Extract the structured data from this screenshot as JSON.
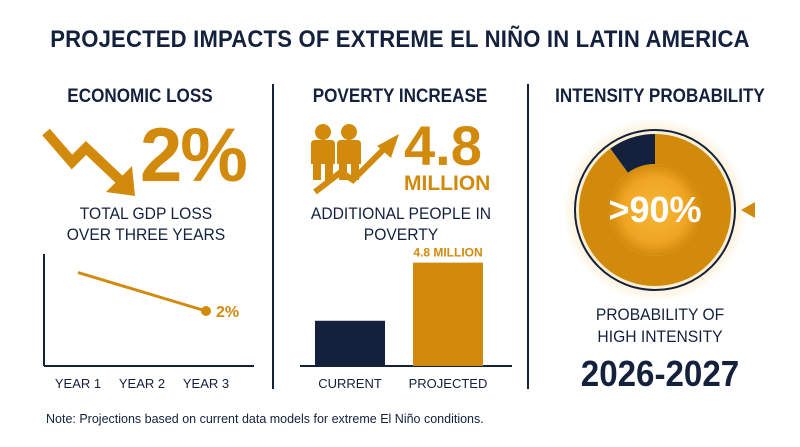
{
  "title": "PROJECTED IMPACTS OF EXTREME EL NIÑO IN LATIN AMERICA",
  "panels": {
    "economic": {
      "heading": "ECONOMIC LOSS",
      "stat": "2%",
      "caption_line1": "TOTAL GDP LOSS",
      "caption_line2": "OVER THREE YEARS",
      "icon": "downtrend-arrow-icon"
    },
    "poverty": {
      "heading": "POVERTY INCREASE",
      "stat_number": "4.8",
      "stat_unit": "MILLION",
      "caption_line1": "ADDITIONAL PEOPLE IN",
      "caption_line2": "POVERTY",
      "icon": "people-uptrend-icon"
    },
    "intensity": {
      "heading": "INTENSITY PROBABILITY",
      "stat": ">90%",
      "caption_line1": "PROBABILITY OF",
      "caption_line2": "HIGH INTENSITY",
      "period": "2026-2027"
    }
  },
  "chart_data": [
    {
      "type": "line",
      "categories": [
        "YEAR 1",
        "YEAR 2",
        "YEAR 3"
      ],
      "values": [
        3.4,
        2.7,
        2.0
      ],
      "end_label": "2%",
      "ylim": [
        0,
        4
      ],
      "grid": false
    },
    {
      "type": "bar",
      "categories": [
        "CURRENT",
        "PROJECTED"
      ],
      "values": [
        2.1,
        4.8
      ],
      "data_labels": [
        "",
        "4.8 MILLION"
      ],
      "ylim": [
        0,
        5.2
      ],
      "colors": [
        "#14213d",
        "#d28a0c"
      ],
      "grid": false
    },
    {
      "type": "pie",
      "values": [
        90,
        10
      ],
      "colors": [
        "#d28a0c",
        "#14213d"
      ],
      "center_label": ">90%"
    }
  ],
  "note": "Note: Projections based on current data models for extreme El Niño conditions.",
  "colors": {
    "navy": "#14213d",
    "gold": "#d28a0c",
    "glow": "#f5b83a"
  }
}
